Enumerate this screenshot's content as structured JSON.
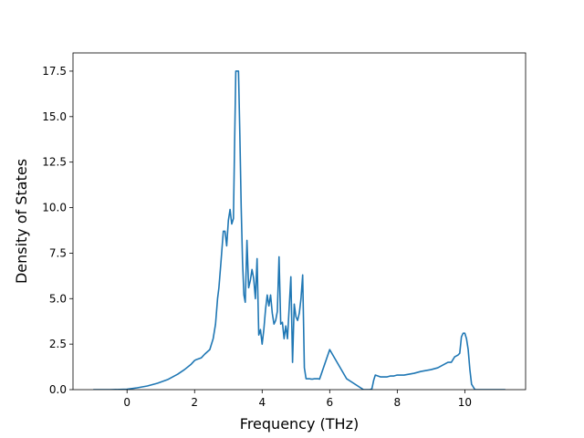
{
  "chart_data": {
    "type": "line",
    "title": "",
    "xlabel": "Frequency (THz)",
    "ylabel": "Density of States",
    "xlim": [
      -1.6,
      11.8
    ],
    "ylim": [
      0,
      18.5
    ],
    "x_ticks": [
      0,
      2,
      4,
      6,
      8,
      10
    ],
    "x_tick_labels": [
      "0",
      "2",
      "4",
      "6",
      "8",
      "10"
    ],
    "y_ticks": [
      0,
      2.5,
      5,
      7.5,
      10,
      12.5,
      15,
      17.5
    ],
    "y_tick_labels": [
      "0.0",
      "2.5",
      "5.0",
      "7.5",
      "10.0",
      "12.5",
      "15.0",
      "17.5"
    ],
    "grid": false,
    "legend": "none",
    "line_color": "#1f77b4",
    "series": [
      {
        "x": [
          -1.0,
          -0.5,
          0.0,
          0.3,
          0.6,
          0.9,
          1.2,
          1.5,
          1.7,
          1.9,
          2.0,
          2.05,
          2.2,
          2.3,
          2.45,
          2.55,
          2.62,
          2.68,
          2.72,
          2.78,
          2.85,
          2.9,
          2.95,
          3.0,
          3.05,
          3.1,
          3.15,
          3.18,
          3.22,
          3.26,
          3.3,
          3.34,
          3.38,
          3.42,
          3.46,
          3.5,
          3.55,
          3.6,
          3.65,
          3.7,
          3.75,
          3.8,
          3.85,
          3.9,
          3.95,
          4.0,
          4.05,
          4.1,
          4.15,
          4.2,
          4.25,
          4.3,
          4.35,
          4.4,
          4.45,
          4.5,
          4.55,
          4.6,
          4.65,
          4.7,
          4.75,
          4.8,
          4.85,
          4.9,
          4.95,
          5.0,
          5.05,
          5.1,
          5.15,
          5.2,
          5.25,
          5.3,
          5.35,
          5.4,
          5.45,
          5.5,
          5.55,
          5.6,
          5.65,
          5.7,
          6.0,
          6.5,
          7.0,
          7.1,
          7.15,
          7.2,
          7.25,
          7.3,
          7.35,
          7.5,
          7.6,
          7.7,
          7.8,
          7.9,
          8.0,
          8.2,
          8.5,
          8.7,
          9.0,
          9.2,
          9.4,
          9.5,
          9.6,
          9.7,
          9.8,
          9.85,
          9.9,
          9.95,
          10.0,
          10.05,
          10.1,
          10.15,
          10.2,
          10.3,
          10.6,
          11.2
        ],
        "y": [
          0.0,
          0.0,
          0.02,
          0.1,
          0.2,
          0.35,
          0.55,
          0.85,
          1.1,
          1.4,
          1.6,
          1.65,
          1.75,
          1.95,
          2.2,
          2.8,
          3.6,
          5.0,
          5.6,
          7.0,
          8.7,
          8.7,
          7.9,
          9.3,
          9.9,
          9.1,
          9.4,
          13.0,
          17.5,
          17.5,
          17.5,
          14.0,
          10.0,
          7.0,
          5.2,
          4.8,
          8.2,
          5.6,
          6.0,
          6.6,
          6.1,
          5.0,
          7.2,
          3.0,
          3.3,
          2.5,
          3.3,
          4.4,
          5.2,
          4.6,
          5.2,
          4.2,
          3.6,
          3.8,
          4.3,
          7.3,
          3.6,
          3.7,
          2.8,
          3.5,
          2.8,
          4.5,
          6.2,
          1.5,
          4.7,
          4.0,
          3.8,
          4.2,
          5.0,
          6.3,
          1.2,
          0.6,
          0.6,
          0.6,
          0.58,
          0.58,
          0.6,
          0.6,
          0.6,
          0.58,
          2.2,
          0.6,
          0.0,
          0.0,
          0.0,
          0.0,
          0.05,
          0.5,
          0.8,
          0.7,
          0.7,
          0.7,
          0.75,
          0.75,
          0.8,
          0.8,
          0.9,
          1.0,
          1.1,
          1.2,
          1.4,
          1.5,
          1.5,
          1.8,
          1.9,
          2.0,
          2.9,
          3.1,
          3.1,
          2.8,
          2.2,
          1.1,
          0.3,
          0.0,
          0.0,
          0.0
        ]
      }
    ]
  }
}
